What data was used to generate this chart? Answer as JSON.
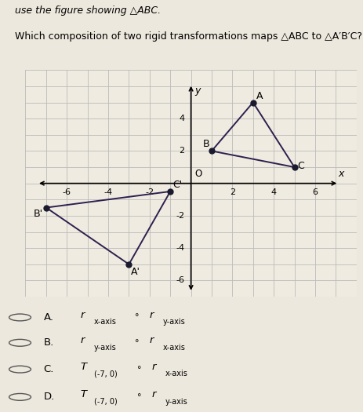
{
  "title_line1": "use the figure showing △ABC.",
  "title_line2": "Which composition of two rigid transformations maps △ABC to △A′B′C?",
  "triangle_ABC": {
    "A": [
      3,
      5
    ],
    "B": [
      1,
      2
    ],
    "C": [
      5,
      1
    ]
  },
  "triangle_A1B1C1": {
    "A1": [
      -3,
      -5
    ],
    "B1": [
      -7,
      -1.5
    ],
    "C1": [
      -1,
      -0.5
    ]
  },
  "xlim": [
    -7.5,
    7.2
  ],
  "ylim": [
    -6.8,
    6.2
  ],
  "xticks_labeled": [
    -6,
    -4,
    -2,
    2,
    4,
    6
  ],
  "yticks_labeled": [
    -6,
    -4,
    -2,
    2,
    4
  ],
  "triangle_color": "#2d2050",
  "dot_color": "#1a1a2e",
  "dot_size": 5,
  "grid_color": "#bbbbbb",
  "bg_color": "#f0ebe0",
  "outer_bg": "#e8e0d0",
  "opt_labels": [
    "A.",
    "B.",
    "C.",
    "D."
  ],
  "opt_t1": [
    "r",
    "r",
    "T",
    "T"
  ],
  "opt_sub1": [
    "x-axis",
    "y-axis",
    "(-7, 0)",
    "(-7, 0)"
  ],
  "opt_circ": [
    "°",
    "°",
    "°",
    "°"
  ],
  "opt_t2": [
    "r",
    "r",
    "r",
    "r"
  ],
  "opt_sub2": [
    "y-axis",
    "x-axis",
    "x-axis",
    "y-axis"
  ]
}
